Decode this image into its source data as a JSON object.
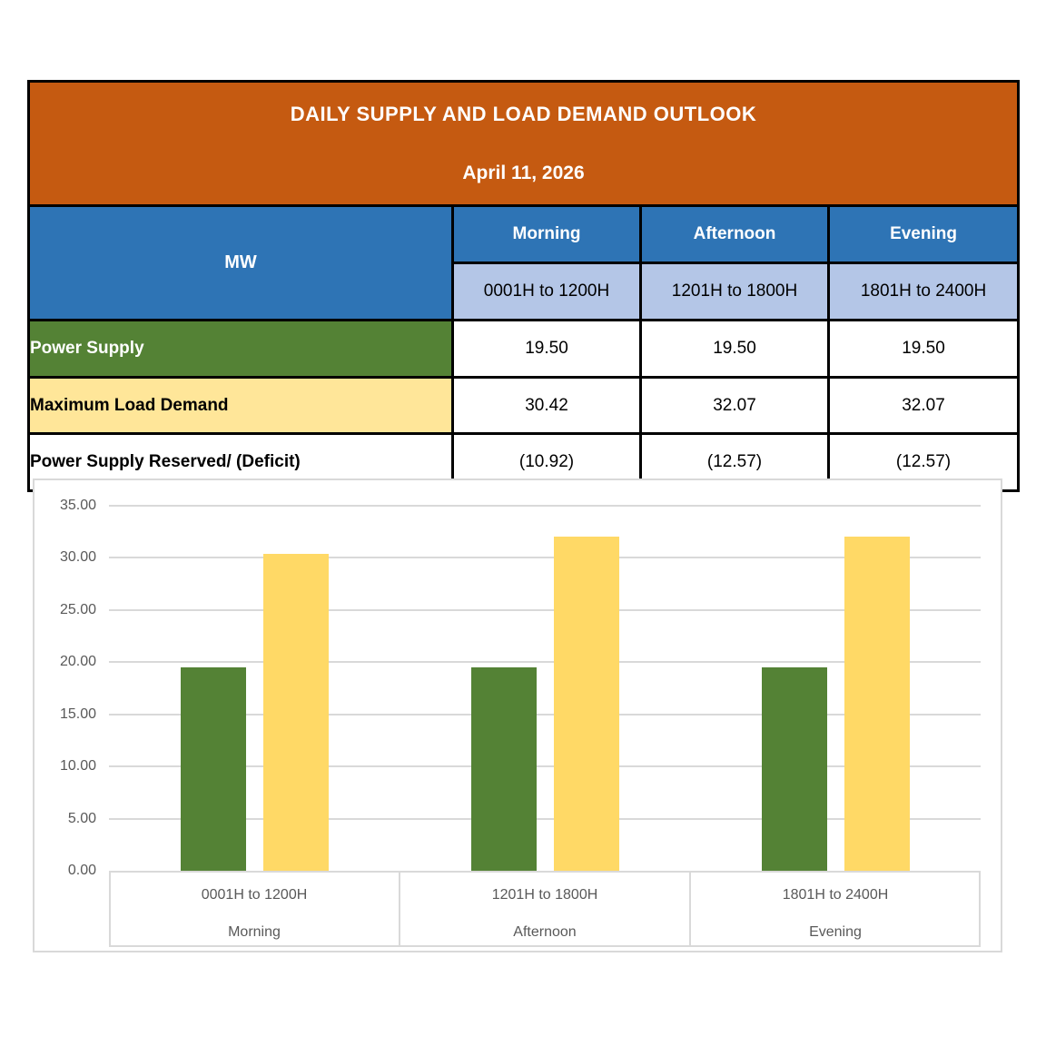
{
  "table": {
    "title": "DAILY SUPPLY AND LOAD DEMAND OUTLOOK",
    "date": "April 11, 2026",
    "unit_header": "MW",
    "periods": [
      {
        "label": "Morning",
        "hours": "0001H to 1200H"
      },
      {
        "label": "Afternoon",
        "hours": "1201H to 1800H"
      },
      {
        "label": "Evening",
        "hours": "1801H to 2400H"
      }
    ],
    "rows": [
      {
        "label": "Power Supply",
        "values": [
          "19.50",
          "19.50",
          "19.50"
        ]
      },
      {
        "label": "Maximum Load Demand",
        "values": [
          "30.42",
          "32.07",
          "32.07"
        ]
      },
      {
        "label": "Power Supply Reserved/ (Deficit)",
        "values": [
          "(10.92)",
          "(12.57)",
          "(12.57)"
        ]
      }
    ]
  },
  "colors": {
    "header_orange": "#C55A11",
    "header_blue": "#2E74B5",
    "subheader_light_blue": "#B4C6E7",
    "supply_green": "#548235",
    "demand_yellow_row": "#FFE699",
    "demand_yellow_bar": "#FFD966",
    "axis_text_gray": "#595959",
    "gridline_gray": "#D9D9D9",
    "table_border": "#000000"
  },
  "chart_data": {
    "type": "bar",
    "categories": [
      {
        "hours": "0001H to 1200H",
        "period": "Morning"
      },
      {
        "hours": "1201H to 1800H",
        "period": "Afternoon"
      },
      {
        "hours": "1801H to 2400H",
        "period": "Evening"
      }
    ],
    "series": [
      {
        "name": "Power Supply",
        "color": "#548235",
        "values": [
          19.5,
          19.5,
          19.5
        ]
      },
      {
        "name": "Maximum Load Demand",
        "color": "#FFD966",
        "values": [
          30.42,
          32.07,
          32.07
        ]
      }
    ],
    "title": "",
    "xlabel": "",
    "ylabel": "",
    "ylim": [
      0,
      35
    ],
    "ytick_step": 5,
    "ytick_labels": [
      "0.00",
      "5.00",
      "10.00",
      "15.00",
      "20.00",
      "25.00",
      "30.00",
      "35.00"
    ],
    "grid": true,
    "legend_position": "none"
  }
}
